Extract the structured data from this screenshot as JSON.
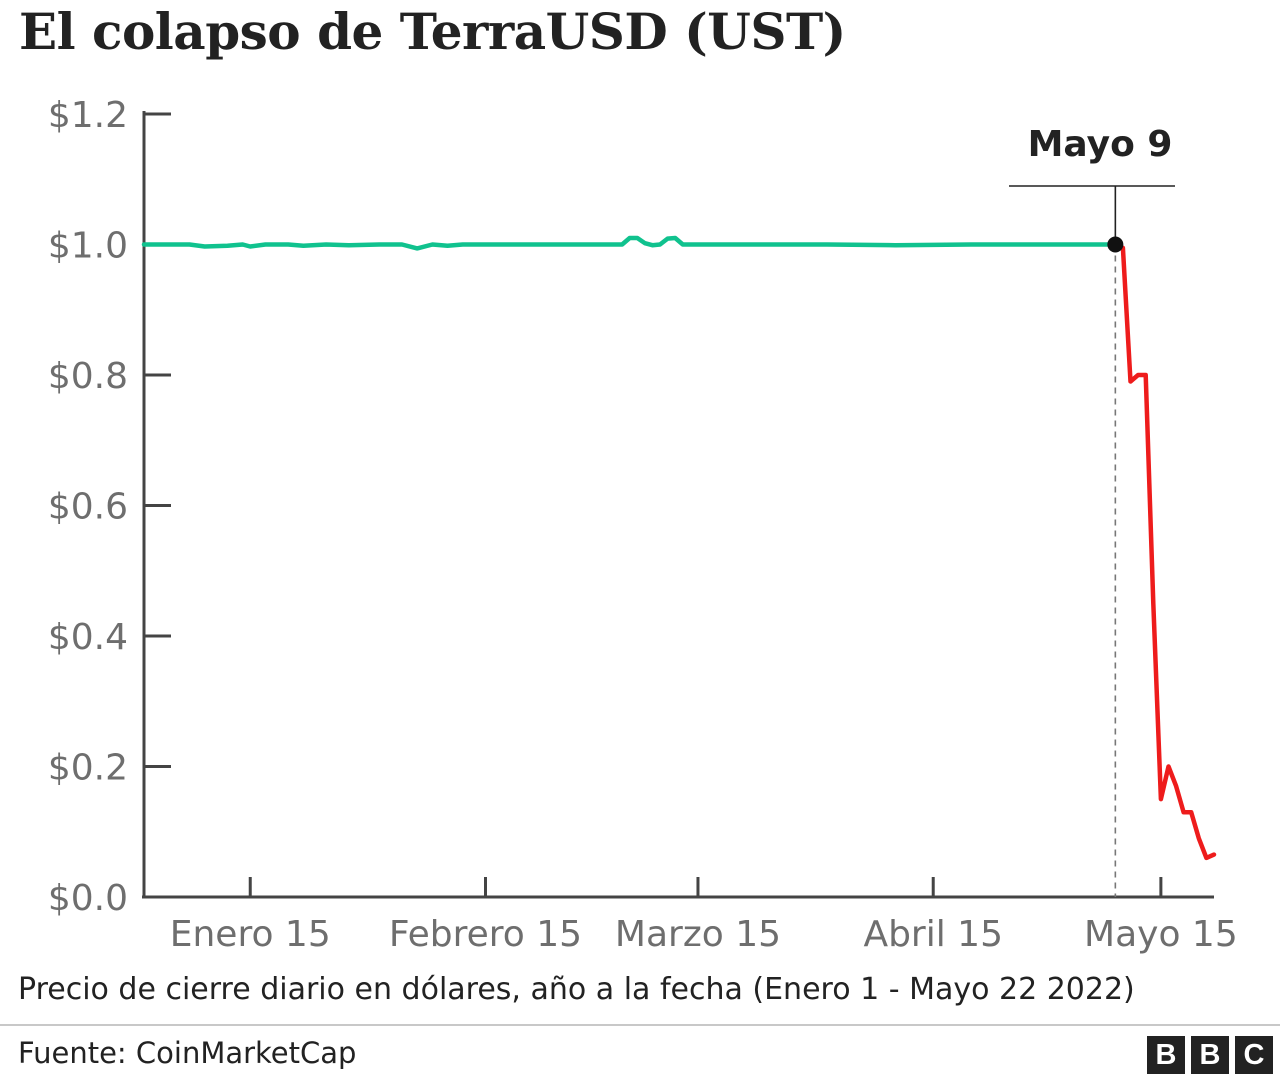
{
  "title": "El colapso de TerraUSD (UST)",
  "subtitle": "Precio de cierre diario en dólares, año a la fecha (Enero 1 - Mayo 22 2022)",
  "source": "Fuente: CoinMarketCap",
  "logo": [
    "B",
    "B",
    "C"
  ],
  "colors": {
    "before": "#10c28e",
    "after": "#ee1c1c",
    "axis": "#444444",
    "tick_text": "#6e6e6e",
    "text": "#222222"
  },
  "chart_data": {
    "type": "line",
    "title": "El colapso de TerraUSD (UST)",
    "xlabel": "",
    "ylabel": "",
    "ylim": [
      0,
      1.2
    ],
    "xlim": [
      "2022-01-01",
      "2022-05-22"
    ],
    "y_ticks": [
      {
        "value": 0.0,
        "label": "$0.0"
      },
      {
        "value": 0.2,
        "label": "$0.2"
      },
      {
        "value": 0.4,
        "label": "$0.4"
      },
      {
        "value": 0.6,
        "label": "$0.6"
      },
      {
        "value": 0.8,
        "label": "$0.8"
      },
      {
        "value": 1.0,
        "label": "$1.0"
      },
      {
        "value": 1.2,
        "label": "$1.2"
      }
    ],
    "x_ticks": [
      {
        "date": "2022-01-15",
        "label": "Enero 15"
      },
      {
        "date": "2022-02-15",
        "label": "Febrero 15"
      },
      {
        "date": "2022-03-15",
        "label": "Marzo 15"
      },
      {
        "date": "2022-04-15",
        "label": "Abril 15"
      },
      {
        "date": "2022-05-15",
        "label": "Mayo 15"
      }
    ],
    "annotation": {
      "label": "Mayo 9",
      "date": "2022-05-09",
      "value": 1.0
    },
    "grid": false,
    "series": [
      {
        "points": [
          [
            "2022-01-01",
            1.0
          ],
          [
            "2022-01-04",
            1.0
          ],
          [
            "2022-01-07",
            1.0
          ],
          [
            "2022-01-09",
            0.997
          ],
          [
            "2022-01-12",
            0.998
          ],
          [
            "2022-01-14",
            1.0
          ],
          [
            "2022-01-15",
            0.997
          ],
          [
            "2022-01-17",
            1.0
          ],
          [
            "2022-01-20",
            1.0
          ],
          [
            "2022-01-22",
            0.998
          ],
          [
            "2022-01-25",
            1.0
          ],
          [
            "2022-01-28",
            0.999
          ],
          [
            "2022-02-01",
            1.0
          ],
          [
            "2022-02-04",
            1.0
          ],
          [
            "2022-02-06",
            0.994
          ],
          [
            "2022-02-08",
            1.0
          ],
          [
            "2022-02-10",
            0.998
          ],
          [
            "2022-02-12",
            1.0
          ],
          [
            "2022-02-20",
            1.0
          ],
          [
            "2022-03-01",
            1.0
          ],
          [
            "2022-03-05",
            1.0
          ],
          [
            "2022-03-06",
            1.01
          ],
          [
            "2022-03-07",
            1.01
          ],
          [
            "2022-03-08",
            1.002
          ],
          [
            "2022-03-09",
            0.999
          ],
          [
            "2022-03-10",
            1.0
          ],
          [
            "2022-03-11",
            1.009
          ],
          [
            "2022-03-12",
            1.01
          ],
          [
            "2022-03-13",
            1.0
          ],
          [
            "2022-03-20",
            1.0
          ],
          [
            "2022-04-01",
            1.0
          ],
          [
            "2022-04-10",
            0.999
          ],
          [
            "2022-04-20",
            1.0
          ],
          [
            "2022-05-01",
            1.0
          ],
          [
            "2022-05-09",
            1.0
          ]
        ]
      },
      {
        "points": [
          [
            "2022-05-09",
            1.0
          ],
          [
            "2022-05-10",
            0.995
          ],
          [
            "2022-05-11",
            0.79
          ],
          [
            "2022-05-12",
            0.8
          ],
          [
            "2022-05-13",
            0.8
          ],
          [
            "2022-05-14",
            0.45
          ],
          [
            "2022-05-15",
            0.15
          ],
          [
            "2022-05-16",
            0.2
          ],
          [
            "2022-05-17",
            0.17
          ],
          [
            "2022-05-18",
            0.13
          ],
          [
            "2022-05-19",
            0.13
          ],
          [
            "2022-05-20",
            0.09
          ],
          [
            "2022-05-21",
            0.06
          ],
          [
            "2022-05-22",
            0.065
          ]
        ]
      }
    ]
  }
}
